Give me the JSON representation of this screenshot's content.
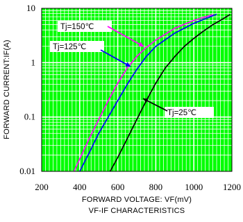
{
  "chart_data": {
    "type": "line",
    "title": "VF-IF CHARACTERISTICS",
    "xlabel": "FORWARD VOLTAGE: VF(mV)",
    "ylabel": "FORWARD CURRENT:IF(A)",
    "xlim": [
      200,
      1200
    ],
    "ylim": [
      0.01,
      10
    ],
    "yscale": "log",
    "grid": true,
    "x_ticks": [
      {
        "value": 200,
        "label": "200"
      },
      {
        "value": 400,
        "label": "400"
      },
      {
        "value": 600,
        "label": "600"
      },
      {
        "value": 800,
        "label": "800"
      },
      {
        "value": 1000,
        "label": "1000"
      },
      {
        "value": 1200,
        "label": "1200"
      }
    ],
    "y_ticks": [
      {
        "value": 0.01,
        "label": "0.01"
      },
      {
        "value": 0.1,
        "label": "0.1"
      },
      {
        "value": 1,
        "label": "1"
      },
      {
        "value": 10,
        "label": "10"
      }
    ],
    "plot_background": "#00ff00",
    "grid_color": "#ffffff",
    "series": [
      {
        "name": "Tj=150℃",
        "color": "#ff00ff",
        "x": [
          370,
          410,
          450,
          500,
          550,
          600,
          650,
          700,
          750,
          800,
          900,
          1000,
          1100
        ],
        "y": [
          0.01,
          0.02,
          0.04,
          0.09,
          0.2,
          0.42,
          0.8,
          1.3,
          1.9,
          2.6,
          4.3,
          6.0,
          7.7
        ]
      },
      {
        "name": "Tj=125℃",
        "color": "#0000ff",
        "x": [
          400,
          450,
          500,
          550,
          600,
          650,
          700,
          750,
          800,
          900,
          1000,
          1120
        ],
        "y": [
          0.01,
          0.022,
          0.05,
          0.1,
          0.2,
          0.4,
          0.75,
          1.3,
          2.0,
          3.5,
          5.3,
          7.8
        ]
      },
      {
        "name": "Tj=25℃",
        "color": "#000000",
        "x": [
          560,
          600,
          650,
          700,
          750,
          800,
          850,
          900,
          950,
          1000,
          1050,
          1100,
          1150,
          1190
        ],
        "y": [
          0.01,
          0.018,
          0.04,
          0.09,
          0.2,
          0.42,
          0.8,
          1.3,
          2.0,
          2.8,
          3.8,
          5.0,
          6.3,
          7.7
        ]
      }
    ],
    "annotations": [
      {
        "text": "Tj=150℃",
        "target": "Tj=150℃",
        "arrow_color": "#ff00ff"
      },
      {
        "text": "Tj=125℃",
        "target": "Tj=125℃",
        "arrow_color": "#0000ff"
      },
      {
        "text": "Tj=25℃",
        "target": "Tj=25℃",
        "arrow_color": "#000000"
      }
    ]
  }
}
